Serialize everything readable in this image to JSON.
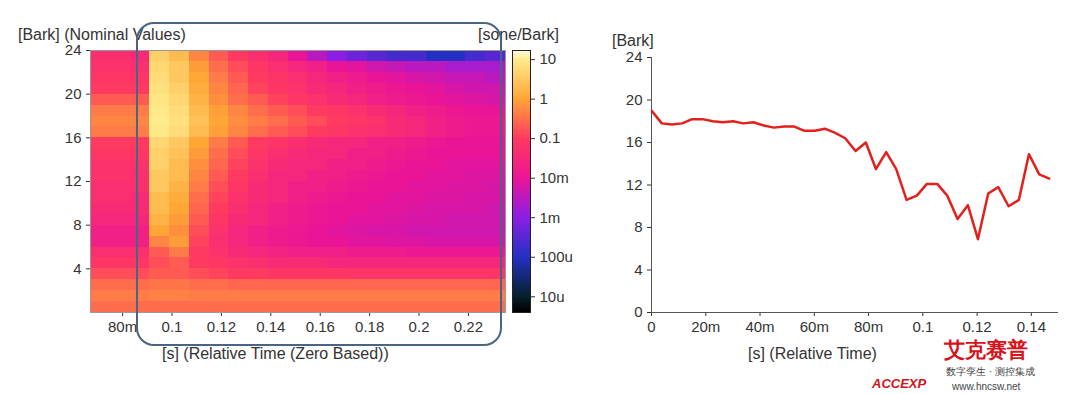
{
  "chart_data": [
    {
      "type": "heatmap",
      "xlabel": "[s] (Relative Time (Zero Based))",
      "ylabel": "[Bark] (Nominal Values)",
      "colorbar_label": "[sone/Bark]",
      "xlim": [
        0.067,
        0.235
      ],
      "xticks": [
        {
          "value": 0.08,
          "label": "80m"
        },
        0.1,
        0.12,
        0.14,
        0.16,
        0.18,
        0.2,
        0.22
      ],
      "ylim": [
        0,
        24
      ],
      "yticks": [
        4,
        8,
        12,
        16,
        20,
        24
      ],
      "colorbar_lim": [
        4e-06,
        17
      ],
      "colorbar_ticks": [
        10,
        1,
        0.1,
        {
          "value": 0.01,
          "label": "10m"
        },
        {
          "value": 0.001,
          "label": "1m"
        },
        {
          "value": 0.0001,
          "label": "100u"
        },
        {
          "value": 1e-05,
          "label": "10u"
        }
      ],
      "x_edges": [
        0.067,
        0.075,
        0.083,
        0.091,
        0.099,
        0.107,
        0.115,
        0.123,
        0.131,
        0.139,
        0.147,
        0.155,
        0.163,
        0.171,
        0.179,
        0.187,
        0.195,
        0.203,
        0.211,
        0.219,
        0.227,
        0.235
      ],
      "y_edges": [
        0,
        1,
        2,
        3,
        4,
        5,
        6,
        7,
        8,
        9,
        10,
        11,
        12,
        13,
        14,
        15,
        16,
        17,
        18,
        19,
        20,
        21,
        22,
        23,
        24
      ],
      "cells": [
        [
          0.3,
          0.3,
          0.3,
          0.3,
          0.3,
          0.3,
          0.3,
          0.3,
          0.3,
          0.3,
          0.3,
          0.3,
          0.3,
          0.3,
          0.3,
          0.3,
          0.3,
          0.3,
          0.3,
          0.3,
          0.3
        ],
        [
          0.4,
          0.4,
          0.4,
          0.45,
          0.45,
          0.4,
          0.4,
          0.4,
          0.4,
          0.4,
          0.4,
          0.4,
          0.4,
          0.4,
          0.4,
          0.4,
          0.4,
          0.4,
          0.4,
          0.4,
          0.4
        ],
        [
          0.3,
          0.3,
          0.3,
          0.35,
          0.35,
          0.3,
          0.3,
          0.25,
          0.25,
          0.25,
          0.25,
          0.25,
          0.25,
          0.25,
          0.25,
          0.25,
          0.25,
          0.25,
          0.25,
          0.25,
          0.25
        ],
        [
          0.15,
          0.15,
          0.15,
          0.2,
          0.2,
          0.15,
          0.12,
          0.1,
          0.1,
          0.08,
          0.08,
          0.08,
          0.08,
          0.07,
          0.07,
          0.07,
          0.07,
          0.07,
          0.07,
          0.07,
          0.07
        ],
        [
          0.08,
          0.08,
          0.08,
          0.15,
          0.2,
          0.1,
          0.08,
          0.06,
          0.05,
          0.04,
          0.04,
          0.04,
          0.03,
          0.03,
          0.03,
          0.03,
          0.03,
          0.03,
          0.03,
          0.03,
          0.03
        ],
        [
          0.05,
          0.05,
          0.05,
          0.2,
          0.4,
          0.1,
          0.06,
          0.04,
          0.03,
          0.025,
          0.02,
          0.02,
          0.02,
          0.015,
          0.015,
          0.015,
          0.012,
          0.012,
          0.012,
          0.012,
          0.012
        ],
        [
          0.02,
          0.02,
          0.02,
          0.5,
          0.8,
          0.12,
          0.05,
          0.03,
          0.02,
          0.015,
          0.012,
          0.01,
          0.01,
          0.008,
          0.008,
          0.007,
          0.007,
          0.006,
          0.006,
          0.006,
          0.006
        ],
        [
          0.02,
          0.02,
          0.02,
          1,
          0.6,
          0.15,
          0.06,
          0.03,
          0.02,
          0.015,
          0.012,
          0.01,
          0.008,
          0.007,
          0.006,
          0.006,
          0.005,
          0.005,
          0.005,
          0.005,
          0.005
        ],
        [
          0.03,
          0.03,
          0.03,
          1.5,
          0.8,
          0.2,
          0.08,
          0.04,
          0.03,
          0.02,
          0.015,
          0.012,
          0.01,
          0.008,
          0.008,
          0.007,
          0.006,
          0.006,
          0.005,
          0.005,
          0.005
        ],
        [
          0.04,
          0.04,
          0.04,
          2,
          1,
          0.25,
          0.1,
          0.05,
          0.03,
          0.02,
          0.015,
          0.012,
          0.01,
          0.01,
          0.008,
          0.008,
          0.007,
          0.006,
          0.006,
          0.006,
          0.005
        ],
        [
          0.05,
          0.05,
          0.04,
          2,
          1.2,
          0.3,
          0.12,
          0.06,
          0.04,
          0.03,
          0.02,
          0.015,
          0.012,
          0.01,
          0.01,
          0.008,
          0.008,
          0.007,
          0.007,
          0.006,
          0.006
        ],
        [
          0.05,
          0.05,
          0.05,
          3,
          1.5,
          0.4,
          0.15,
          0.08,
          0.04,
          0.03,
          0.02,
          0.02,
          0.015,
          0.012,
          0.01,
          0.01,
          0.008,
          0.008,
          0.007,
          0.007,
          0.006
        ],
        [
          0.06,
          0.06,
          0.05,
          3,
          2,
          0.5,
          0.2,
          0.1,
          0.05,
          0.03,
          0.03,
          0.02,
          0.02,
          0.015,
          0.012,
          0.01,
          0.01,
          0.008,
          0.008,
          0.007,
          0.007
        ],
        [
          0.06,
          0.06,
          0.06,
          4,
          2,
          0.6,
          0.25,
          0.12,
          0.06,
          0.04,
          0.03,
          0.03,
          0.02,
          0.02,
          0.015,
          0.012,
          0.01,
          0.01,
          0.008,
          0.008,
          0.008
        ],
        [
          0.08,
          0.08,
          0.08,
          4,
          2.5,
          0.8,
          0.3,
          0.15,
          0.08,
          0.05,
          0.04,
          0.03,
          0.03,
          0.02,
          0.02,
          0.015,
          0.012,
          0.01,
          0.01,
          0.01,
          0.01
        ],
        [
          0.1,
          0.1,
          0.1,
          5,
          3,
          1,
          0.4,
          0.2,
          0.1,
          0.07,
          0.05,
          0.04,
          0.03,
          0.03,
          0.02,
          0.02,
          0.015,
          0.012,
          0.01,
          0.01,
          0.01
        ],
        [
          0.4,
          0.4,
          0.4,
          9,
          6,
          2,
          0.9,
          0.5,
          0.3,
          0.2,
          0.15,
          0.1,
          0.08,
          0.06,
          0.05,
          0.04,
          0.03,
          0.02,
          0.015,
          0.012,
          0.012
        ],
        [
          0.5,
          0.5,
          0.5,
          10,
          7,
          2.5,
          1,
          0.6,
          0.4,
          0.3,
          0.2,
          0.15,
          0.1,
          0.08,
          0.06,
          0.04,
          0.03,
          0.02,
          0.015,
          0.012,
          0.012
        ],
        [
          0.4,
          0.4,
          0.4,
          9,
          6,
          2,
          0.9,
          0.5,
          0.3,
          0.2,
          0.15,
          0.1,
          0.08,
          0.06,
          0.04,
          0.03,
          0.02,
          0.015,
          0.012,
          0.01,
          0.01
        ],
        [
          0.2,
          0.2,
          0.2,
          8,
          5,
          1.5,
          0.6,
          0.3,
          0.2,
          0.12,
          0.08,
          0.06,
          0.04,
          0.03,
          0.02,
          0.015,
          0.012,
          0.01,
          0.008,
          0.007,
          0.006
        ],
        [
          0.1,
          0.1,
          0.09,
          7,
          4,
          1.2,
          0.5,
          0.25,
          0.12,
          0.08,
          0.06,
          0.04,
          0.03,
          0.02,
          0.015,
          0.012,
          0.01,
          0.008,
          0.006,
          0.005,
          0.005
        ],
        [
          0.08,
          0.08,
          0.07,
          6,
          3,
          1,
          0.4,
          0.2,
          0.1,
          0.07,
          0.05,
          0.03,
          0.02,
          0.015,
          0.01,
          0.008,
          0.006,
          0.005,
          0.004,
          0.004,
          0.003
        ],
        [
          0.06,
          0.06,
          0.05,
          5,
          3,
          0.8,
          0.3,
          0.15,
          0.08,
          0.05,
          0.03,
          0.02,
          0.01,
          0.008,
          0.005,
          0.004,
          0.003,
          0.003,
          0.002,
          0.002,
          0.002
        ],
        [
          0.05,
          0.05,
          0.04,
          4,
          2,
          0.5,
          0.2,
          0.1,
          0.05,
          0.03,
          0.01,
          0.003,
          0.001,
          0.0005,
          0.0003,
          0.0002,
          0.0002,
          0.0001,
          0.0001,
          0.0002,
          0.0003
        ]
      ]
    },
    {
      "type": "line",
      "xlabel": "[s] (Relative Time)",
      "ylabel": "[Bark]",
      "xlim": [
        0,
        0.15
      ],
      "xticks": [
        0,
        {
          "value": 0.02,
          "label": "20m"
        },
        {
          "value": 0.04,
          "label": "40m"
        },
        {
          "value": 0.06,
          "label": "60m"
        },
        {
          "value": 0.08,
          "label": "80m"
        },
        0.1,
        0.12,
        0.14
      ],
      "ylim": [
        0,
        24
      ],
      "yticks": [
        0,
        4,
        8,
        12,
        16,
        20,
        24
      ],
      "color": "#e3201b",
      "x": [
        0,
        0.0038,
        0.0075,
        0.0113,
        0.015,
        0.0188,
        0.0226,
        0.0263,
        0.0301,
        0.0338,
        0.0376,
        0.0414,
        0.0451,
        0.0489,
        0.0526,
        0.0564,
        0.0602,
        0.0639,
        0.0677,
        0.0714,
        0.0752,
        0.079,
        0.0827,
        0.0865,
        0.0902,
        0.094,
        0.0978,
        0.1015,
        0.1053,
        0.109,
        0.1128,
        0.1166,
        0.1203,
        0.1241,
        0.1278,
        0.1316,
        0.1354,
        0.1391,
        0.1429,
        0.1466
      ],
      "values": [
        19.0,
        17.8,
        17.7,
        17.8,
        18.2,
        18.2,
        18.0,
        17.9,
        18.0,
        17.8,
        17.9,
        17.6,
        17.4,
        17.5,
        17.5,
        17.1,
        17.1,
        17.3,
        16.9,
        16.4,
        15.2,
        16.0,
        13.5,
        15.1,
        13.5,
        10.6,
        11.0,
        12.1,
        12.1,
        11.0,
        8.8,
        10.1,
        6.9,
        11.2,
        11.8,
        10.0,
        10.6,
        14.9,
        13.0,
        12.6
      ]
    }
  ],
  "watermark": {
    "logo": "ACCEXP",
    "brand": "艾克赛普",
    "slogan": "数字孪生 · 测控集成",
    "url": "www.hncsw.net"
  }
}
